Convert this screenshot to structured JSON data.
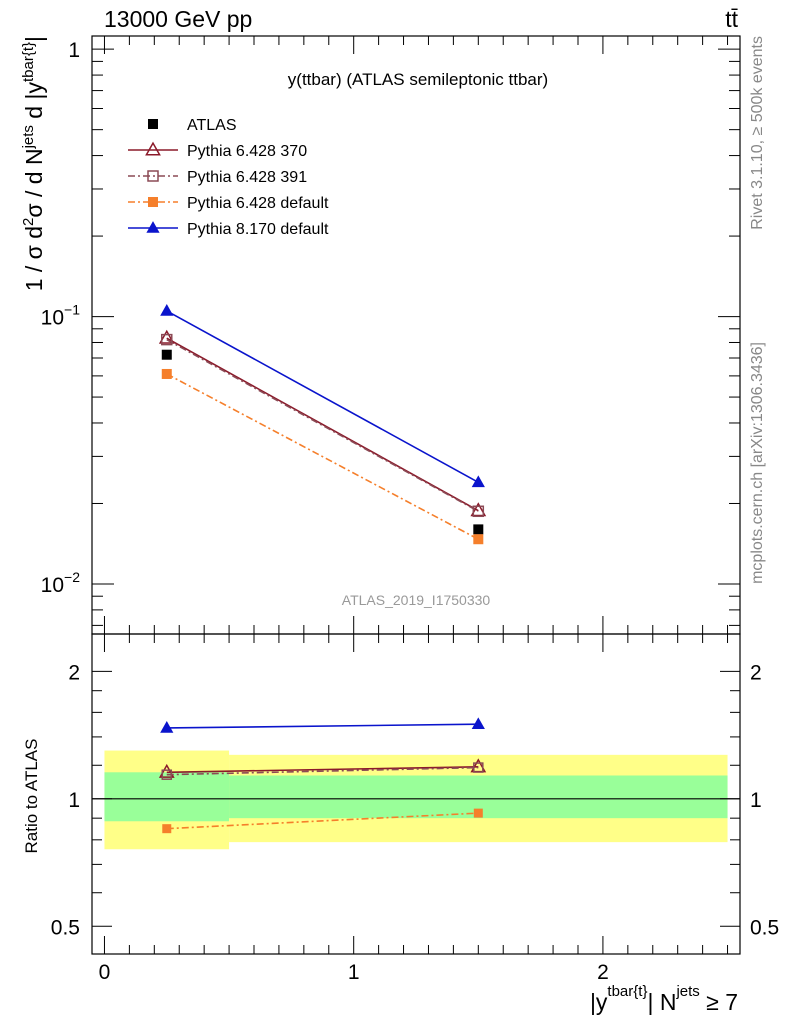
{
  "header": {
    "energy_label": "13000 GeV pp",
    "process_label": "tt̄"
  },
  "side": {
    "rivet_label": "Rivet 3.1.10, ≥ 500k events",
    "source_label": "mcplots.cern.ch [arXiv:1306.3436]"
  },
  "chart_data": [
    {
      "type": "line",
      "panel": "main",
      "title": "y(ttbar) (ATLAS semileptonic ttbar)",
      "watermark": "ATLAS_2019_I1750330",
      "ylabel_parts": [
        "1 / σ d",
        "2",
        "σ / d N",
        "jets",
        " d |y",
        "tbar{t}",
        "|"
      ],
      "yscale": "log",
      "ylim": [
        0.0065,
        1.12
      ],
      "xlim": [
        -0.05,
        2.55
      ],
      "y_ticks": [
        {
          "value": 1,
          "label": "1"
        },
        {
          "value": 0.1,
          "label": "10",
          "exp": "−1"
        },
        {
          "value": 0.01,
          "label": "10",
          "exp": "−2"
        }
      ],
      "legend_position": "top-left",
      "x": [
        0.25,
        1.5
      ],
      "series": [
        {
          "name": "ATLAS",
          "color": "#000000",
          "marker": "square",
          "line": "none",
          "values": [
            0.072,
            0.016
          ]
        },
        {
          "name": "Pythia 6.428 370",
          "color": "#8b1a2a",
          "marker": "triangle-open",
          "line": "solid",
          "values": [
            0.083,
            0.0188
          ]
        },
        {
          "name": "Pythia 6.428 391",
          "color": "#8b4a55",
          "marker": "square-open",
          "line": "dashdot",
          "values": [
            0.082,
            0.0187
          ]
        },
        {
          "name": "Pythia 6.428 default",
          "color": "#f57f2b",
          "marker": "square",
          "line": "dashdot",
          "values": [
            0.061,
            0.0147
          ]
        },
        {
          "name": "Pythia 8.170 default",
          "color": "#0a14cc",
          "marker": "triangle",
          "line": "solid",
          "values": [
            0.105,
            0.024
          ]
        }
      ]
    },
    {
      "type": "line",
      "panel": "ratio",
      "ylabel": "Ratio to ATLAS",
      "xlabel_parts": [
        "|y",
        "tbar{t}",
        "| N",
        "jets",
        " ≥ 7"
      ],
      "yscale": "log",
      "ylim": [
        0.43,
        2.45
      ],
      "xlim": [
        -0.05,
        2.55
      ],
      "x_ticks": [
        {
          "value": 0,
          "label": "0"
        },
        {
          "value": 1,
          "label": "1"
        },
        {
          "value": 2,
          "label": "2"
        }
      ],
      "y_ticks": [
        {
          "value": 0.5,
          "label": "0.5"
        },
        {
          "value": 1,
          "label": "1"
        },
        {
          "value": 2,
          "label": "2"
        }
      ],
      "bands": [
        {
          "x_range": [
            0,
            0.5
          ],
          "outer": [
            0.76,
            1.3
          ],
          "inner": [
            0.885,
            1.155
          ]
        },
        {
          "x_range": [
            0.5,
            2.5
          ],
          "outer": [
            0.79,
            1.27
          ],
          "inner": [
            0.9,
            1.135
          ]
        }
      ],
      "x": [
        0.25,
        1.5
      ],
      "series": [
        {
          "name": "Pythia 6.428 370",
          "values": [
            1.155,
            1.19
          ]
        },
        {
          "name": "Pythia 6.428 391",
          "values": [
            1.14,
            1.185
          ]
        },
        {
          "name": "Pythia 6.428 default",
          "values": [
            0.85,
            0.925
          ]
        },
        {
          "name": "Pythia 8.170 default",
          "values": [
            1.47,
            1.5
          ]
        }
      ]
    }
  ]
}
